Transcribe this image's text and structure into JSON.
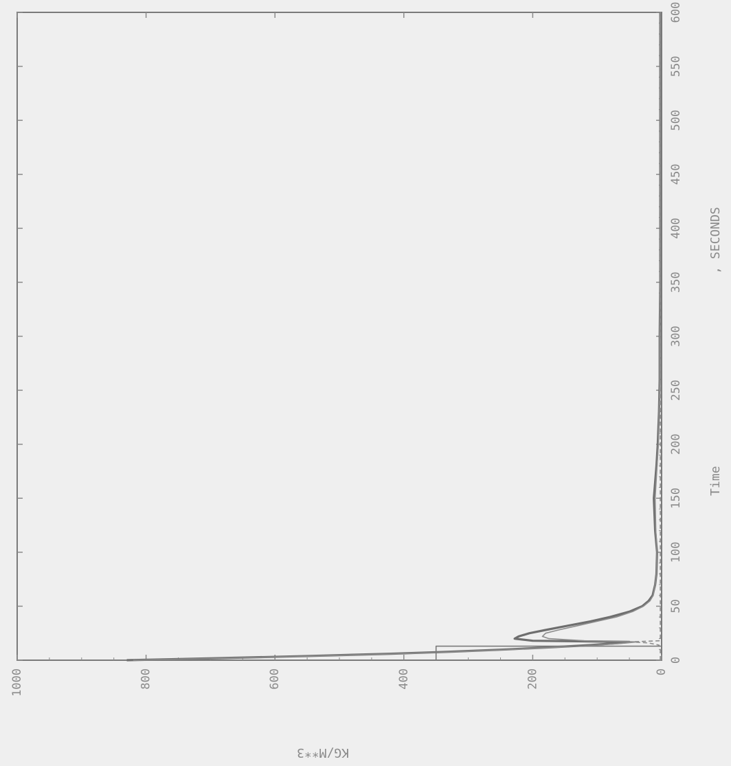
{
  "chart_data": {
    "type": "line",
    "orientation": "rotated 90 degrees counter-clockwise (page printed in landscape)",
    "xlabel": "Time",
    "xunit": ", SECONDS",
    "ylabel": "KG/M**3",
    "xlim": [
      0,
      600
    ],
    "ylim": [
      0,
      1000
    ],
    "xticks": [
      "0",
      "50",
      "100",
      "150",
      "200",
      "250",
      "300",
      "350",
      "400",
      "450",
      "500",
      "550",
      "600"
    ],
    "yticks": [
      "0",
      "200",
      "400",
      "600",
      "800",
      "1000"
    ],
    "grid": false,
    "colors": {
      "ink": "#8a8a8a",
      "background": "#efefef"
    },
    "series": [
      {
        "style": "solid-heavy",
        "x": [
          0,
          2,
          4,
          6,
          8,
          10,
          12,
          14,
          16,
          17,
          18,
          20,
          22,
          25,
          28,
          32,
          36,
          40,
          45,
          50,
          55,
          60,
          70,
          80,
          100,
          120,
          150,
          180,
          200,
          230,
          260,
          300,
          350,
          400,
          450,
          500,
          550,
          600
        ],
        "y": [
          830,
          680,
          540,
          420,
          320,
          240,
          170,
          110,
          65,
          50,
          200,
          228,
          222,
          205,
          180,
          145,
          110,
          80,
          50,
          30,
          20,
          14,
          10,
          8,
          7,
          10,
          12,
          8,
          6,
          4,
          3,
          3,
          2,
          2,
          2,
          2,
          2,
          2
        ]
      },
      {
        "style": "solid-light",
        "x": [
          0,
          2,
          4,
          6,
          8,
          10,
          12,
          14,
          16,
          17,
          18,
          20,
          22,
          25,
          28,
          32,
          36,
          40,
          45,
          50,
          55,
          60,
          70,
          80,
          100,
          120,
          150,
          180,
          200,
          230,
          260,
          300,
          350,
          400,
          450,
          500,
          550,
          600
        ],
        "y": [
          820,
          670,
          530,
          410,
          310,
          230,
          160,
          100,
          55,
          38,
          120,
          175,
          185,
          180,
          160,
          130,
          100,
          70,
          45,
          28,
          18,
          13,
          10,
          8,
          7,
          9,
          10,
          7,
          5,
          4,
          3,
          3,
          2,
          2,
          2,
          2,
          2,
          2
        ]
      },
      {
        "style": "dashed",
        "x": [
          0,
          10,
          14,
          16,
          17,
          18,
          30,
          100,
          200,
          300,
          400,
          500,
          600
        ],
        "y": [
          2,
          2,
          4,
          20,
          48,
          2,
          2,
          2,
          2,
          2,
          2,
          2,
          2
        ]
      },
      {
        "style": "step",
        "x": [
          0,
          13,
          13,
          17,
          600
        ],
        "y": [
          350,
          350,
          0,
          0,
          0
        ]
      }
    ]
  }
}
